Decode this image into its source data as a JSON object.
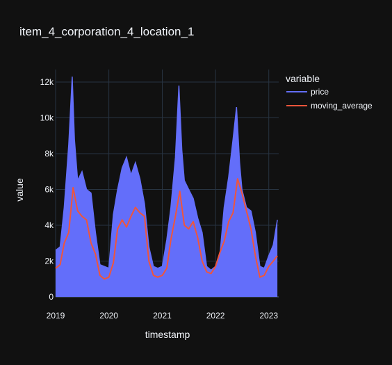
{
  "chart_data": {
    "type": "line",
    "title": "item_4_corporation_4_location_1",
    "xlabel": "timestamp",
    "ylabel": "value",
    "xlim": [
      "2019-01-01",
      "2023-03-10"
    ],
    "ylim": [
      0,
      12700
    ],
    "grid": true,
    "legend": {
      "title": "variable",
      "placement": "top-right"
    },
    "x_ticks": [
      "2019",
      "2020",
      "2021",
      "2022",
      "2023"
    ],
    "y_ticks": [
      {
        "value": 0,
        "label": "0"
      },
      {
        "value": 2000,
        "label": "2k"
      },
      {
        "value": 4000,
        "label": "4k"
      },
      {
        "value": 6000,
        "label": "6k"
      },
      {
        "value": 8000,
        "label": "8k"
      },
      {
        "value": 10000,
        "label": "10k"
      },
      {
        "value": 12000,
        "label": "12k"
      }
    ],
    "series": [
      {
        "name": "price",
        "color": "#636efa",
        "x": [
          "2019-01-01",
          "2019-02-01",
          "2019-03-01",
          "2019-04-01",
          "2019-04-25",
          "2019-05-10",
          "2019-06-01",
          "2019-07-01",
          "2019-08-01",
          "2019-09-01",
          "2019-10-01",
          "2019-11-01",
          "2019-12-01",
          "2020-01-01",
          "2020-02-01",
          "2020-03-01",
          "2020-04-01",
          "2020-05-01",
          "2020-06-01",
          "2020-07-01",
          "2020-08-01",
          "2020-09-01",
          "2020-10-01",
          "2020-11-01",
          "2020-12-01",
          "2021-01-01",
          "2021-02-01",
          "2021-03-01",
          "2021-04-01",
          "2021-04-25",
          "2021-05-15",
          "2021-06-01",
          "2021-07-01",
          "2021-08-01",
          "2021-09-01",
          "2021-10-01",
          "2021-11-01",
          "2021-12-01",
          "2022-01-01",
          "2022-02-01",
          "2022-03-01",
          "2022-04-01",
          "2022-05-01",
          "2022-05-25",
          "2022-06-15",
          "2022-07-01",
          "2022-08-01",
          "2022-09-01",
          "2022-10-01",
          "2022-11-01",
          "2022-12-01",
          "2023-01-01",
          "2023-02-01",
          "2023-03-01"
        ],
        "values": [
          2600,
          2800,
          5000,
          8500,
          12300,
          8800,
          6500,
          7000,
          6000,
          5800,
          3600,
          1800,
          1700,
          1600,
          4600,
          6000,
          7200,
          7800,
          6800,
          7500,
          6600,
          5200,
          2800,
          1700,
          1600,
          1700,
          3200,
          5000,
          7800,
          11800,
          8200,
          6500,
          6000,
          5500,
          4400,
          3600,
          1700,
          1500,
          1700,
          2400,
          5000,
          6700,
          8800,
          10600,
          7500,
          6000,
          5000,
          4800,
          3600,
          1700,
          1600,
          2300,
          2900,
          4300
        ]
      },
      {
        "name": "moving_average",
        "color": "#ef553b",
        "x": [
          "2019-01-01",
          "2019-02-01",
          "2019-03-01",
          "2019-04-01",
          "2019-05-01",
          "2019-06-01",
          "2019-07-01",
          "2019-08-01",
          "2019-09-01",
          "2019-10-01",
          "2019-11-01",
          "2019-12-01",
          "2020-01-01",
          "2020-02-01",
          "2020-03-01",
          "2020-04-01",
          "2020-05-01",
          "2020-06-01",
          "2020-07-01",
          "2020-08-01",
          "2020-09-01",
          "2020-10-01",
          "2020-11-01",
          "2020-12-01",
          "2021-01-01",
          "2021-02-01",
          "2021-03-01",
          "2021-04-01",
          "2021-05-01",
          "2021-06-01",
          "2021-07-01",
          "2021-08-01",
          "2021-09-01",
          "2021-10-01",
          "2021-11-01",
          "2021-12-01",
          "2022-01-01",
          "2022-02-01",
          "2022-03-01",
          "2022-04-01",
          "2022-05-01",
          "2022-06-01",
          "2022-07-01",
          "2022-08-01",
          "2022-09-01",
          "2022-10-01",
          "2022-11-01",
          "2022-12-01",
          "2023-01-01",
          "2023-02-01",
          "2023-03-01"
        ],
        "values": [
          1600,
          1800,
          3000,
          3600,
          6100,
          4800,
          4500,
          4300,
          3000,
          2400,
          1200,
          1000,
          1100,
          1900,
          3800,
          4300,
          3900,
          4500,
          5000,
          4700,
          4500,
          2000,
          1200,
          1100,
          1200,
          1600,
          3200,
          4500,
          5900,
          4000,
          3800,
          4200,
          3300,
          2000,
          1400,
          1300,
          1700,
          2500,
          3100,
          4200,
          4700,
          6600,
          5800,
          4800,
          3800,
          2300,
          1100,
          1200,
          1700,
          2000,
          2300
        ]
      }
    ]
  }
}
